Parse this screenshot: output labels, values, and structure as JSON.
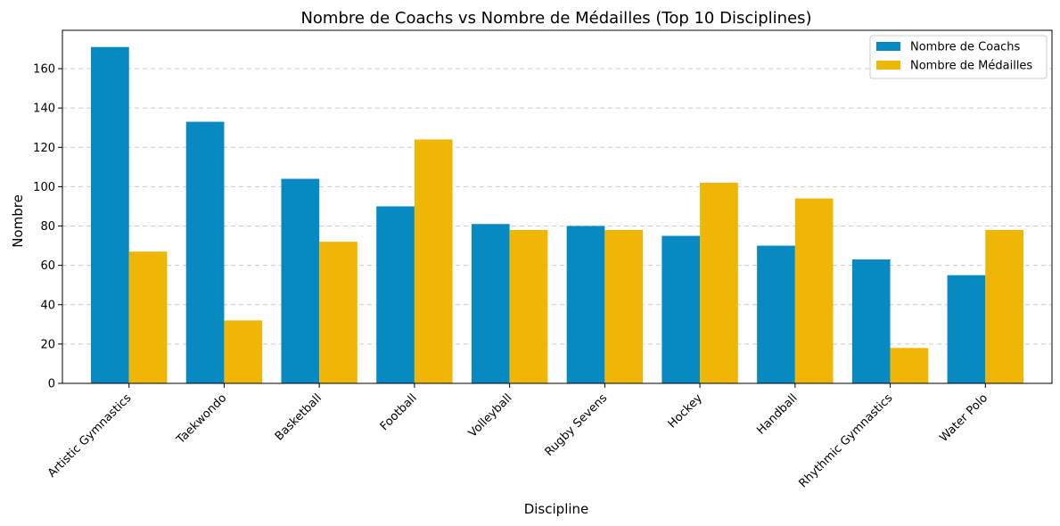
{
  "chart_data": {
    "type": "bar",
    "title": "Nombre de Coachs vs Nombre de Médailles (Top 10 Disciplines)",
    "xlabel": "Discipline",
    "ylabel": "Nombre",
    "categories": [
      "Artistic Gymnastics",
      "Taekwondo",
      "Basketball",
      "Football",
      "Volleyball",
      "Rugby Sevens",
      "Hockey",
      "Handball",
      "Rhythmic Gymnastics",
      "Water Polo"
    ],
    "series": [
      {
        "name": "Nombre de Coachs",
        "color": "#068ac1",
        "values": [
          171,
          133,
          104,
          90,
          81,
          80,
          75,
          70,
          63,
          55
        ]
      },
      {
        "name": "Nombre de Médailles",
        "color": "#f0b606",
        "values": [
          67,
          32,
          72,
          124,
          78,
          78,
          102,
          94,
          18,
          78
        ]
      }
    ],
    "ylim": [
      0,
      179.5
    ],
    "yticks": [
      0,
      20,
      40,
      60,
      80,
      100,
      120,
      140,
      160
    ],
    "grid": "y-dashed",
    "legend": "top-right"
  }
}
